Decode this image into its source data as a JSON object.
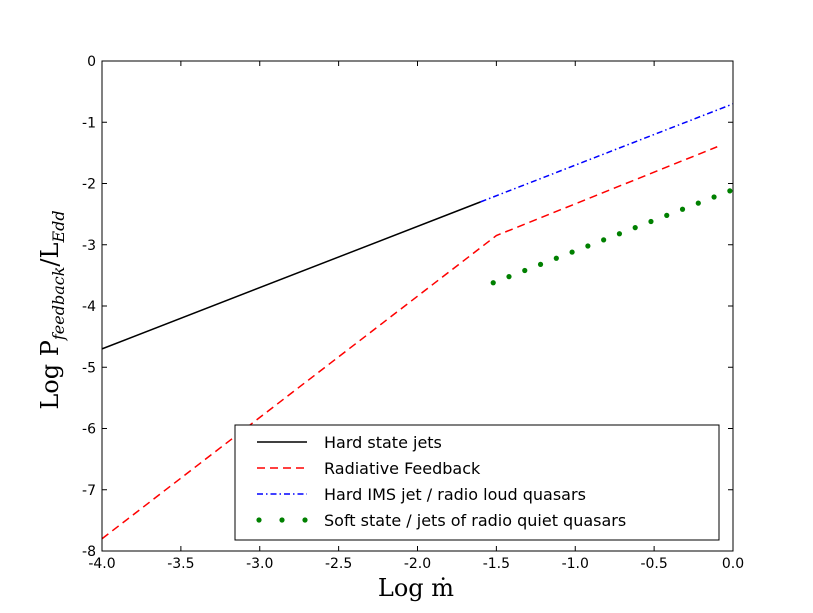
{
  "chart_data": {
    "type": "line",
    "xlabel": "Log ṁ",
    "ylabel_main": "Log P",
    "ylabel_sub1": "feedback",
    "ylabel_mid": "/L",
    "ylabel_sub2": "Edd",
    "xlim": [
      -4.0,
      0.0
    ],
    "ylim": [
      -8,
      0
    ],
    "xticks": [
      -4.0,
      -3.5,
      -3.0,
      -2.5,
      -2.0,
      -1.5,
      -1.0,
      -0.5,
      0.0
    ],
    "xtick_labels": [
      "-4.0",
      "-3.5",
      "-3.0",
      "-2.5",
      "-2.0",
      "-1.5",
      "-1.0",
      "-0.5",
      "0.0"
    ],
    "yticks": [
      0,
      -1,
      -2,
      -3,
      -4,
      -5,
      -6,
      -7,
      -8
    ],
    "ytick_labels": [
      "0",
      "-1",
      "-2",
      "-3",
      "-4",
      "-5",
      "-6",
      "-7",
      "-8"
    ],
    "grid": false,
    "legend_position": "bottom-right",
    "series": [
      {
        "name": "Hard state jets",
        "style": "solid",
        "color": "#000000",
        "x": [
          -4.0,
          -1.6
        ],
        "y": [
          -4.7,
          -2.3
        ]
      },
      {
        "name": "Radiative Feedback",
        "style": "dashed",
        "color": "#ff0000",
        "x": [
          -4.0,
          -1.5,
          -0.1
        ],
        "y": [
          -7.8,
          -2.85,
          -1.4
        ]
      },
      {
        "name": "Hard IMS jet / radio loud quasars",
        "style": "dashdot",
        "color": "#0000ff",
        "x": [
          -1.6,
          0.0
        ],
        "y": [
          -2.3,
          -0.7
        ]
      },
      {
        "name": "Soft state / jets of radio quiet quasars",
        "style": "dotted",
        "color": "#008000",
        "x": [
          -1.52,
          -1.42,
          -1.32,
          -1.22,
          -1.12,
          -1.02,
          -0.92,
          -0.82,
          -0.72,
          -0.62,
          -0.52,
          -0.42,
          -0.32,
          -0.22,
          -0.12,
          -0.02
        ],
        "y": [
          -3.62,
          -3.52,
          -3.42,
          -3.32,
          -3.22,
          -3.12,
          -3.02,
          -2.92,
          -2.82,
          -2.72,
          -2.62,
          -2.52,
          -2.42,
          -2.32,
          -2.22,
          -2.12
        ]
      }
    ]
  }
}
